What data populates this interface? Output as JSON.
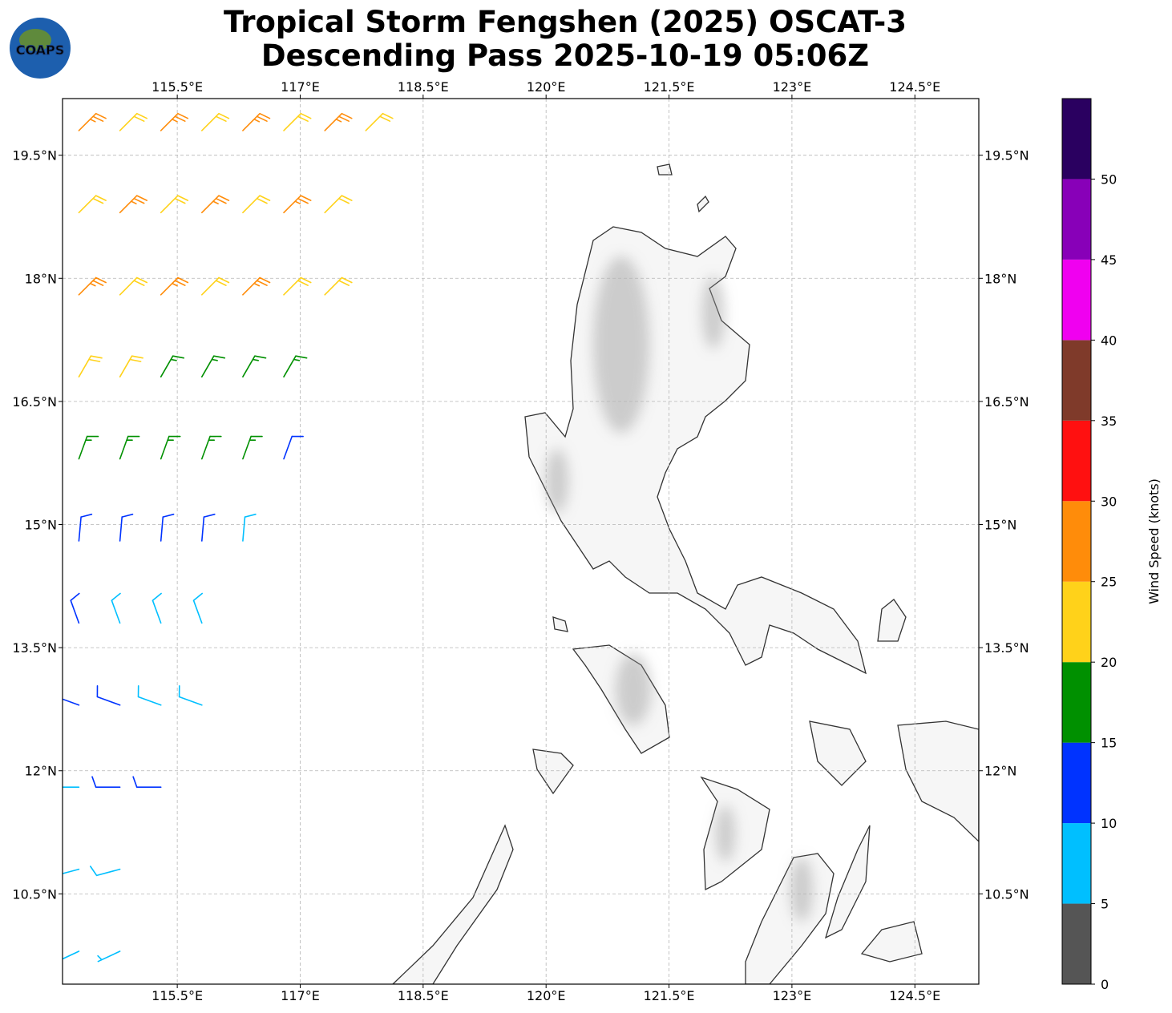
{
  "chart_data": {
    "type": "barbs",
    "logo": "COAPS",
    "title": [
      "Tropical Storm Fengshen (2025) OSCAT-3",
      "Descending Pass 2025-10-19 05:06Z"
    ],
    "xlim": [
      114.1,
      125.28
    ],
    "ylim": [
      9.4,
      20.19
    ],
    "xticks": [
      {
        "value": 115.5,
        "label": "115.5°E"
      },
      {
        "value": 117,
        "label": "117°E"
      },
      {
        "value": 118.5,
        "label": "118.5°E"
      },
      {
        "value": 120,
        "label": "120°E"
      },
      {
        "value": 121.5,
        "label": "121.5°E"
      },
      {
        "value": 123,
        "label": "123°E"
      },
      {
        "value": 124.5,
        "label": "124.5°E"
      }
    ],
    "yticks": [
      {
        "value": 10.5,
        "label": "10.5°N"
      },
      {
        "value": 12,
        "label": "12°N"
      },
      {
        "value": 13.5,
        "label": "13.5°N"
      },
      {
        "value": 15,
        "label": "15°N"
      },
      {
        "value": 16.5,
        "label": "16.5°N"
      },
      {
        "value": 18,
        "label": "18°N"
      },
      {
        "value": 19.5,
        "label": "19.5°N"
      }
    ],
    "grid": true,
    "barbs": {
      "lon": [
        114.3,
        114.8,
        115.3,
        115.8,
        116.3,
        116.8,
        117.3,
        117.8,
        114.3,
        114.8,
        115.3,
        115.8,
        116.3,
        116.8,
        117.3,
        114.3,
        114.8,
        115.3,
        115.8,
        116.3,
        116.8,
        117.3,
        114.3,
        114.8,
        115.3,
        115.8,
        116.3,
        116.8,
        114.3,
        114.8,
        115.3,
        115.8,
        116.3,
        116.8,
        114.3,
        114.8,
        115.3,
        115.8,
        116.3,
        114.3,
        114.8,
        115.3,
        115.8,
        114.3,
        114.8,
        115.3,
        115.8,
        114.3,
        114.8,
        115.3,
        114.3,
        114.8,
        114.3,
        114.8
      ],
      "lat": [
        19.8,
        19.8,
        19.8,
        19.8,
        19.8,
        19.8,
        19.8,
        19.8,
        18.8,
        18.8,
        18.8,
        18.8,
        18.8,
        18.8,
        18.8,
        17.8,
        17.8,
        17.8,
        17.8,
        17.8,
        17.8,
        17.8,
        16.8,
        16.8,
        16.8,
        16.8,
        16.8,
        16.8,
        15.8,
        15.8,
        15.8,
        15.8,
        15.8,
        15.8,
        14.8,
        14.8,
        14.8,
        14.8,
        14.8,
        13.8,
        13.8,
        13.8,
        13.8,
        12.8,
        12.8,
        12.8,
        12.8,
        11.8,
        11.8,
        11.8,
        10.8,
        10.8,
        9.8,
        9.8
      ],
      "speed": [
        27,
        22,
        27,
        22,
        27,
        22,
        27,
        22,
        22,
        27,
        22,
        27,
        22,
        27,
        22,
        27,
        22,
        27,
        22,
        27,
        22,
        22,
        22,
        22,
        17,
        17,
        17,
        17,
        17,
        17,
        17,
        17,
        17,
        12,
        12,
        12,
        12,
        12,
        8,
        12,
        8,
        8,
        8,
        12,
        12,
        8,
        8,
        8,
        12,
        12,
        8,
        8,
        7,
        7
      ],
      "direction": [
        45,
        45,
        45,
        45,
        45,
        45,
        45,
        45,
        45,
        45,
        45,
        45,
        45,
        45,
        45,
        45,
        45,
        45,
        45,
        45,
        45,
        45,
        30,
        30,
        30,
        30,
        30,
        30,
        20,
        20,
        20,
        20,
        20,
        20,
        5,
        5,
        5,
        5,
        5,
        340,
        340,
        340,
        340,
        290,
        290,
        290,
        290,
        270,
        270,
        270,
        255,
        255,
        245,
        245
      ]
    },
    "colorbar": {
      "label": "Wind Speed (knots)",
      "lim": [
        0,
        55
      ],
      "ticks": [
        0,
        5,
        10,
        15,
        20,
        25,
        30,
        35,
        40,
        45,
        50
      ],
      "bounds": [
        0,
        5,
        10,
        15,
        20,
        25,
        30,
        35,
        40,
        45,
        50,
        55
      ],
      "colors": [
        "#555555",
        "#00bfff",
        "#0033ff",
        "#009000",
        "#ffd21a",
        "#ff8c0a",
        "#ff1010",
        "#7f3a2a",
        "#f000f0",
        "#8800b8",
        "#2a0060"
      ]
    }
  }
}
